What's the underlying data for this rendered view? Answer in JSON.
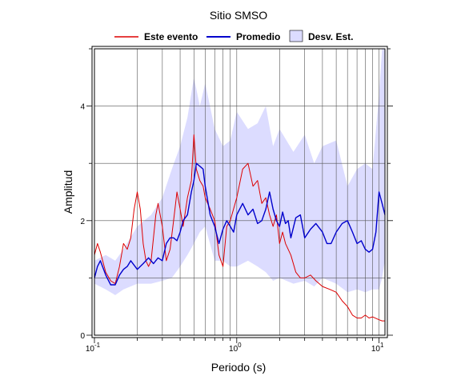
{
  "chart_data": {
    "type": "line",
    "title": "Sitio SMSO",
    "xlabel": "Periodo (s)",
    "ylabel": "Amplitud",
    "xscale": "log",
    "xlim": [
      0.1,
      11
    ],
    "ylim": [
      0,
      5
    ],
    "grid": true,
    "legend_position": "top",
    "x_ticks": [
      {
        "value": 0.1,
        "base": "10",
        "exp": "-1"
      },
      {
        "value": 1,
        "base": "10",
        "exp": "0"
      },
      {
        "value": 10,
        "base": "10",
        "exp": "1"
      }
    ],
    "y_ticks": [
      {
        "value": 0,
        "label": "0"
      },
      {
        "value": 2,
        "label": "2"
      },
      {
        "value": 4,
        "label": "4"
      }
    ],
    "band": {
      "name": "Desv. Est.",
      "color": "#dcdcff",
      "x": [
        0.1,
        0.12,
        0.14,
        0.16,
        0.2,
        0.25,
        0.3,
        0.35,
        0.4,
        0.45,
        0.5,
        0.55,
        0.6,
        0.7,
        0.8,
        0.9,
        1.0,
        1.2,
        1.4,
        1.6,
        1.8,
        2.0,
        2.5,
        3.0,
        3.5,
        4.0,
        5.0,
        6.0,
        7.0,
        8.0,
        9.0,
        10.0,
        10.5,
        11.0
      ],
      "upper": [
        1.3,
        1.4,
        1.3,
        1.5,
        1.9,
        2.1,
        2.4,
        2.9,
        3.3,
        3.8,
        4.5,
        4.0,
        4.4,
        3.6,
        3.3,
        3.4,
        3.9,
        3.6,
        3.7,
        4.0,
        3.3,
        3.6,
        3.2,
        3.5,
        3.0,
        3.3,
        3.4,
        2.6,
        2.9,
        3.0,
        2.9,
        4.2,
        5.0,
        5.0
      ],
      "lower": [
        0.9,
        0.8,
        0.7,
        0.8,
        0.9,
        0.9,
        0.95,
        1.0,
        1.2,
        1.4,
        1.6,
        1.8,
        1.9,
        1.3,
        1.3,
        1.2,
        1.2,
        1.3,
        1.2,
        1.1,
        0.95,
        1.0,
        0.9,
        0.95,
        0.85,
        1.0,
        0.9,
        0.75,
        0.8,
        0.75,
        0.8,
        0.8,
        1.0,
        1.3
      ]
    },
    "series": [
      {
        "name": "Este evento",
        "color": "#dd0000",
        "x": [
          0.1,
          0.105,
          0.11,
          0.12,
          0.13,
          0.14,
          0.15,
          0.16,
          0.17,
          0.18,
          0.19,
          0.2,
          0.21,
          0.22,
          0.23,
          0.24,
          0.25,
          0.27,
          0.28,
          0.3,
          0.32,
          0.34,
          0.36,
          0.38,
          0.4,
          0.42,
          0.45,
          0.48,
          0.5,
          0.52,
          0.55,
          0.58,
          0.6,
          0.65,
          0.7,
          0.75,
          0.8,
          0.85,
          0.9,
          1.0,
          1.1,
          1.2,
          1.3,
          1.4,
          1.5,
          1.6,
          1.7,
          1.8,
          1.9,
          2.0,
          2.1,
          2.2,
          2.4,
          2.6,
          2.8,
          3.0,
          3.3,
          3.6,
          4.0,
          4.5,
          5.0,
          5.5,
          6.0,
          6.5,
          7.0,
          7.5,
          8.0,
          8.5,
          9.0,
          10.0,
          10.5,
          11.0
        ],
        "y": [
          1.4,
          1.6,
          1.45,
          1.1,
          0.95,
          0.9,
          1.2,
          1.6,
          1.5,
          1.7,
          2.2,
          2.5,
          2.2,
          1.6,
          1.3,
          1.2,
          1.3,
          2.1,
          2.3,
          1.9,
          1.3,
          1.5,
          2.0,
          2.5,
          2.2,
          1.9,
          2.4,
          2.7,
          3.5,
          2.9,
          2.7,
          2.6,
          2.4,
          2.2,
          2.0,
          1.4,
          1.2,
          1.9,
          2.0,
          2.4,
          2.9,
          3.0,
          2.6,
          2.7,
          2.3,
          2.4,
          2.1,
          1.9,
          2.1,
          1.6,
          1.8,
          1.6,
          1.4,
          1.1,
          1.0,
          1.0,
          1.05,
          0.95,
          0.85,
          0.8,
          0.75,
          0.6,
          0.5,
          0.35,
          0.3,
          0.3,
          0.35,
          0.3,
          0.32,
          0.27,
          0.25,
          0.25
        ]
      },
      {
        "name": "Promedio",
        "color": "#0000cc",
        "x": [
          0.1,
          0.105,
          0.11,
          0.12,
          0.13,
          0.14,
          0.15,
          0.16,
          0.17,
          0.18,
          0.2,
          0.22,
          0.24,
          0.26,
          0.28,
          0.3,
          0.32,
          0.34,
          0.36,
          0.38,
          0.4,
          0.42,
          0.45,
          0.48,
          0.5,
          0.52,
          0.55,
          0.58,
          0.6,
          0.65,
          0.7,
          0.75,
          0.8,
          0.85,
          0.9,
          0.95,
          1.0,
          1.1,
          1.2,
          1.3,
          1.4,
          1.5,
          1.6,
          1.7,
          1.8,
          1.9,
          2.0,
          2.1,
          2.2,
          2.3,
          2.4,
          2.6,
          2.8,
          3.0,
          3.3,
          3.6,
          4.0,
          4.3,
          4.6,
          5.0,
          5.5,
          6.0,
          6.5,
          7.0,
          7.5,
          8.0,
          8.5,
          9.0,
          9.5,
          10.0,
          10.5,
          11.0
        ],
        "y": [
          1.0,
          1.2,
          1.3,
          1.05,
          0.88,
          0.88,
          1.05,
          1.15,
          1.2,
          1.3,
          1.15,
          1.25,
          1.35,
          1.25,
          1.35,
          1.3,
          1.6,
          1.7,
          1.7,
          1.65,
          1.8,
          2.0,
          2.1,
          2.5,
          2.7,
          3.0,
          2.95,
          2.9,
          2.6,
          2.1,
          1.9,
          1.6,
          1.85,
          2.0,
          1.9,
          1.8,
          2.1,
          2.3,
          2.1,
          2.2,
          1.95,
          2.0,
          2.2,
          2.5,
          2.2,
          2.0,
          1.9,
          2.15,
          1.95,
          2.0,
          1.7,
          2.05,
          2.1,
          1.7,
          1.85,
          1.95,
          1.8,
          1.6,
          1.6,
          1.8,
          1.95,
          2.0,
          1.8,
          1.6,
          1.65,
          1.5,
          1.45,
          1.5,
          1.8,
          2.5,
          2.3,
          2.1
        ]
      }
    ]
  }
}
